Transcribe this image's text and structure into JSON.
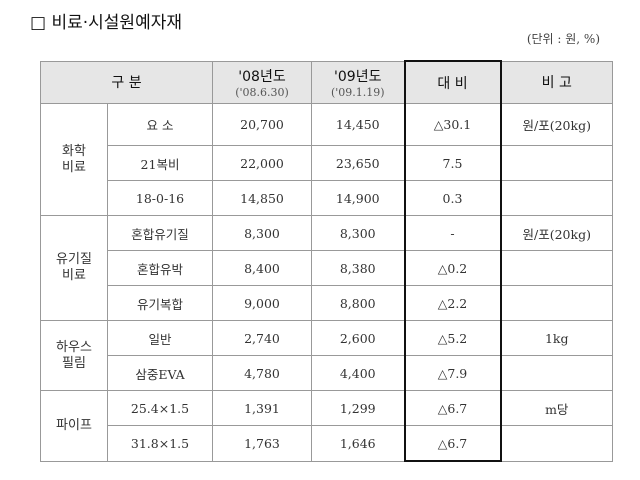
{
  "title": "□ 비료·시설원예자재",
  "unit": "(단위 : 원, %)",
  "headers": {
    "category": "구 분",
    "y08": "'08년도",
    "y08_date": "('08.6.30)",
    "y09": "'09년도",
    "y09_date": "('09.1.19)",
    "compare": "대 비",
    "note": "비 고"
  },
  "groups": [
    {
      "name": "화학\n비료",
      "rows": [
        {
          "item": "요 소",
          "y08": "20,700",
          "y09": "14,450",
          "compare": "△30.1",
          "note": "원/포(20kg)"
        },
        {
          "item": "21복비",
          "y08": "22,000",
          "y09": "23,650",
          "compare": "7.5",
          "note": ""
        },
        {
          "item": "18-0-16",
          "y08": "14,850",
          "y09": "14,900",
          "compare": "0.3",
          "note": ""
        }
      ]
    },
    {
      "name": "유기질\n비료",
      "rows": [
        {
          "item": "혼합유기질",
          "y08": "8,300",
          "y09": "8,300",
          "compare": "-",
          "note": "원/포(20kg)"
        },
        {
          "item": "혼합유박",
          "y08": "8,400",
          "y09": "8,380",
          "compare": "△0.2",
          "note": ""
        },
        {
          "item": "유기복합",
          "y08": "9,000",
          "y09": "8,800",
          "compare": "△2.2",
          "note": ""
        }
      ]
    },
    {
      "name": "하우스\n필림",
      "rows": [
        {
          "item": "일반",
          "y08": "2,740",
          "y09": "2,600",
          "compare": "△5.2",
          "note": "1kg"
        },
        {
          "item": "삼중EVA",
          "y08": "4,780",
          "y09": "4,400",
          "compare": "△7.9",
          "note": ""
        }
      ]
    },
    {
      "name": "파이프",
      "rows": [
        {
          "item": "25.4×1.5",
          "y08": "1,391",
          "y09": "1,299",
          "compare": "△6.7",
          "note": "m당"
        },
        {
          "item": "31.8×1.5",
          "y08": "1,763",
          "y09": "1,646",
          "compare": "△6.7",
          "note": ""
        }
      ]
    }
  ]
}
